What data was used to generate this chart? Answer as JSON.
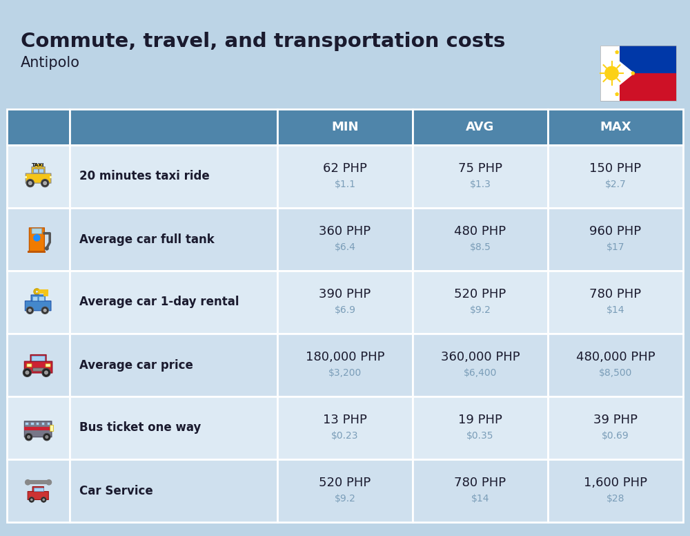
{
  "title": "Commute, travel, and transportation costs",
  "subtitle": "Antipolo",
  "bg_color": "#bcd4e6",
  "header_bg": "#4f85aa",
  "header_text_color": "#ffffff",
  "row_bg_alt": "#cfe0ee",
  "row_bg_main": "#ddeaf4",
  "border_color": "#ffffff",
  "col_headers": [
    "MIN",
    "AVG",
    "MAX"
  ],
  "rows": [
    {
      "label": "20 minutes taxi ride",
      "min_php": "62 PHP",
      "min_usd": "$1.1",
      "avg_php": "75 PHP",
      "avg_usd": "$1.3",
      "max_php": "150 PHP",
      "max_usd": "$2.7"
    },
    {
      "label": "Average car full tank",
      "min_php": "360 PHP",
      "min_usd": "$6.4",
      "avg_php": "480 PHP",
      "avg_usd": "$8.5",
      "max_php": "960 PHP",
      "max_usd": "$17"
    },
    {
      "label": "Average car 1-day rental",
      "min_php": "390 PHP",
      "min_usd": "$6.9",
      "avg_php": "520 PHP",
      "avg_usd": "$9.2",
      "max_php": "780 PHP",
      "max_usd": "$14"
    },
    {
      "label": "Average car price",
      "min_php": "180,000 PHP",
      "min_usd": "$3,200",
      "avg_php": "360,000 PHP",
      "avg_usd": "$6,400",
      "max_php": "480,000 PHP",
      "max_usd": "$8,500"
    },
    {
      "label": "Bus ticket one way",
      "min_php": "13 PHP",
      "min_usd": "$0.23",
      "avg_php": "19 PHP",
      "avg_usd": "$0.35",
      "max_php": "39 PHP",
      "max_usd": "$0.69"
    },
    {
      "label": "Car Service",
      "min_php": "520 PHP",
      "min_usd": "$9.2",
      "avg_php": "780 PHP",
      "avg_usd": "$14",
      "max_php": "1,600 PHP",
      "max_usd": "$28"
    }
  ],
  "title_fontsize": 21,
  "subtitle_fontsize": 15,
  "header_fontsize": 13,
  "label_fontsize": 12,
  "value_fontsize": 13,
  "usd_fontsize": 10,
  "usd_color": "#7a9db8",
  "text_color": "#1a1a2e",
  "flag_blue": "#0038a8",
  "flag_red": "#ce1126",
  "flag_white": "#ffffff",
  "flag_yellow": "#fcd116"
}
